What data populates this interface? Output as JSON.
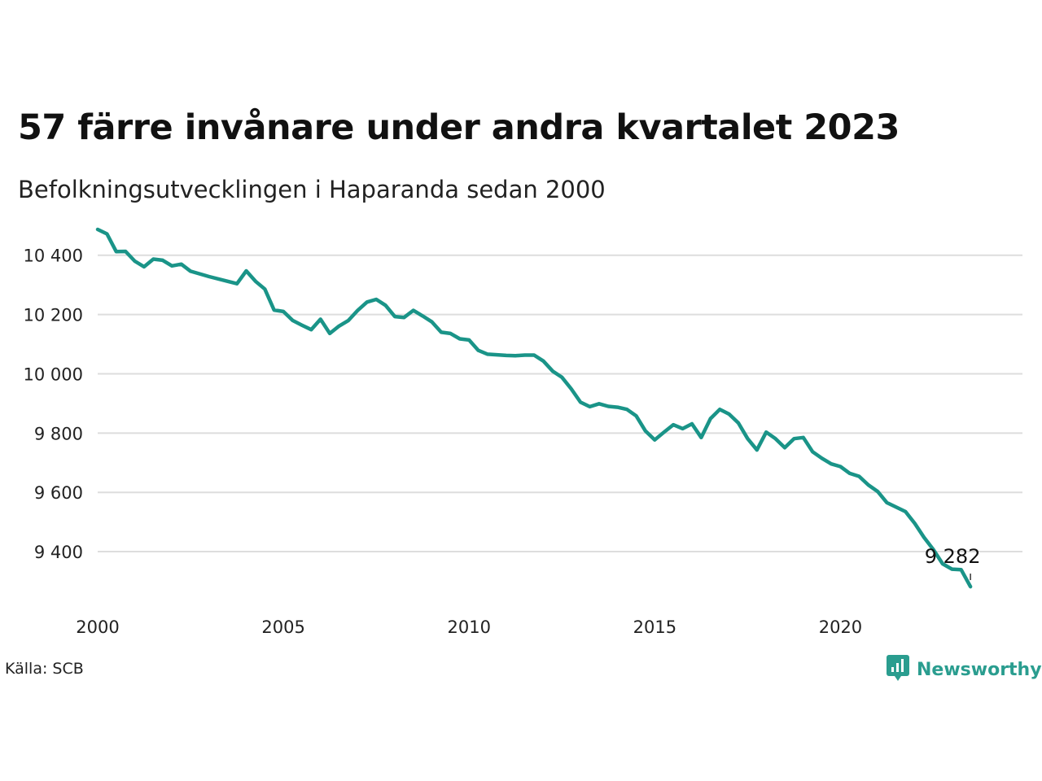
{
  "title": "57 färre invånare under andra kvartalet 2023",
  "subtitle": "Befolkningsutvecklingen i Haparanda sedan 2000",
  "source": "Källa: SCB",
  "brand": "Newsworthy",
  "colors": {
    "line": "#1a9488",
    "grid": "#dddddd",
    "brand": "#2a9d8f"
  },
  "chart_data": {
    "type": "line",
    "title": "57 färre invånare under andra kvartalet 2023",
    "subtitle": "Befolkningsutvecklingen i Haparanda sedan 2000",
    "xlabel": "",
    "ylabel": "",
    "xlim": [
      2000,
      2024.9
    ],
    "ylim": [
      9230,
      10520
    ],
    "xticks": [
      2000,
      2005,
      2010,
      2015,
      2020
    ],
    "xtick_labels": [
      "2000",
      "2005",
      "2010",
      "2015",
      "2020"
    ],
    "yticks": [
      9400,
      9600,
      9800,
      10000,
      10200,
      10400
    ],
    "ytick_labels": [
      "9 400",
      "9 600",
      "9 800",
      "10 000",
      "10 200",
      "10 400"
    ],
    "grid": "horizontal",
    "end_label": "9 282",
    "series": [
      {
        "x": [
          2000.0,
          2000.25,
          2000.5,
          2000.75,
          2001.0,
          2001.25,
          2001.5,
          2001.75,
          2002.0,
          2002.25,
          2002.5,
          2003.0,
          2003.5,
          2003.75,
          2004.0,
          2004.25,
          2004.5,
          2004.75,
          2005.0,
          2005.25,
          2005.5,
          2005.75,
          2006.0,
          2006.25,
          2006.5,
          2006.75,
          2007.0,
          2007.25,
          2007.5,
          2007.75,
          2008.0,
          2008.25,
          2008.5,
          2008.75,
          2009.0,
          2009.25,
          2009.5,
          2009.75,
          2010.0,
          2010.25,
          2010.5,
          2011.0,
          2011.25,
          2011.5,
          2011.75,
          2012.0,
          2012.25,
          2012.5,
          2012.75,
          2013.0,
          2013.25,
          2013.5,
          2013.75,
          2014.0,
          2014.25,
          2014.5,
          2014.75,
          2015.0,
          2015.25,
          2015.5,
          2015.75,
          2016.0,
          2016.25,
          2016.5,
          2016.75,
          2017.0,
          2017.25,
          2017.5,
          2017.75,
          2018.0,
          2018.25,
          2018.5,
          2018.75,
          2019.0,
          2019.25,
          2019.5,
          2019.75,
          2020.0,
          2020.25,
          2020.5,
          2020.75,
          2021.0,
          2021.25,
          2021.5,
          2021.75,
          2022.0,
          2022.25,
          2022.5,
          2022.75,
          2023.0,
          2023.25,
          2023.5
        ],
        "y": [
          10487,
          10472,
          10412,
          10413,
          10380,
          10361,
          10387,
          10383,
          10364,
          10370,
          10346,
          10328,
          10312,
          10304,
          10347,
          10312,
          10286,
          10215,
          10210,
          10180,
          10164,
          10149,
          10184,
          10136,
          10161,
          10180,
          10214,
          10242,
          10251,
          10231,
          10193,
          10190,
          10214,
          10195,
          10175,
          10140,
          10136,
          10118,
          10114,
          10079,
          10066,
          10062,
          10061,
          10063,
          10063,
          10043,
          10009,
          9988,
          9949,
          9904,
          9889,
          9899,
          9890,
          9887,
          9880,
          9858,
          9807,
          9777,
          9803,
          9828,
          9815,
          9831,
          9785,
          9849,
          9880,
          9864,
          9834,
          9781,
          9743,
          9803,
          9781,
          9751,
          9781,
          9785,
          9737,
          9715,
          9696,
          9687,
          9664,
          9654,
          9625,
          9603,
          9565,
          9550,
          9535,
          9495,
          9448,
          9407,
          9359,
          9341,
          9339,
          9282
        ]
      }
    ]
  }
}
